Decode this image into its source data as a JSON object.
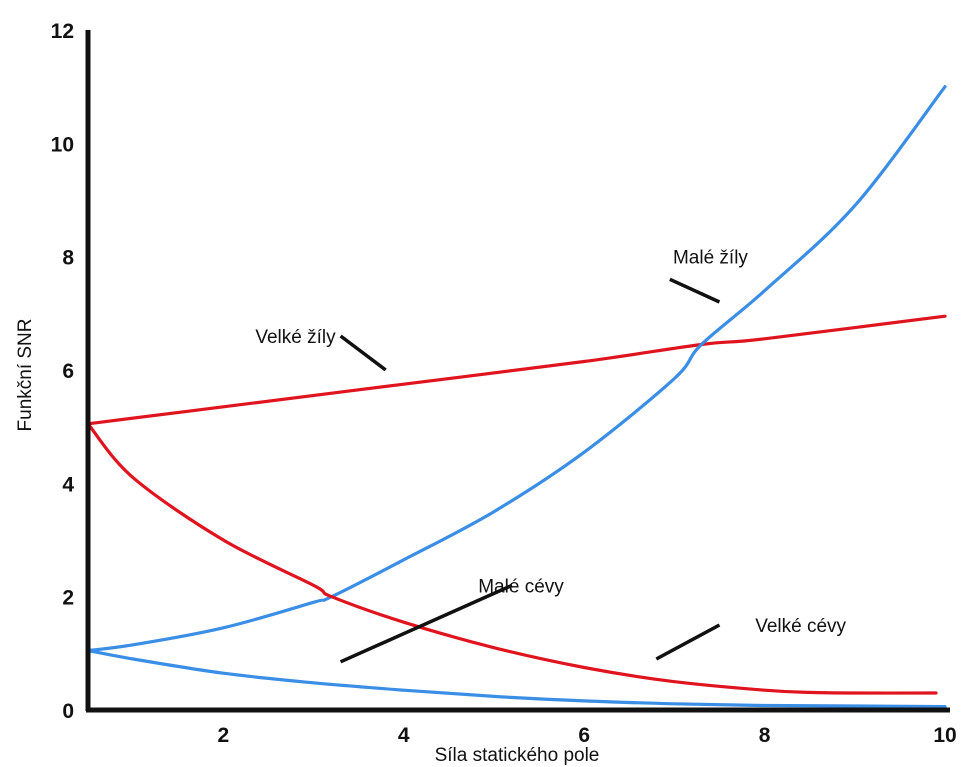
{
  "chart_data": {
    "type": "line",
    "xlabel": "Síla statického pole",
    "ylabel": "Funkční SNR",
    "xlim": [
      0.5,
      10
    ],
    "ylim": [
      0,
      12
    ],
    "x_ticks": [
      "2",
      "4",
      "6",
      "8",
      "10"
    ],
    "y_ticks": [
      "0",
      "2",
      "4",
      "6",
      "8",
      "10",
      "12"
    ],
    "grid": false,
    "series": [
      {
        "name": "Velké žíly",
        "color": "#e0141e",
        "x": [
          0.5,
          2,
          4,
          6,
          7.3,
          8,
          10
        ],
        "y": [
          5.05,
          5.35,
          5.75,
          6.15,
          6.45,
          6.55,
          6.95
        ]
      },
      {
        "name": "Malé žíly",
        "color": "#3a8ee6",
        "x": [
          0.5,
          1,
          2,
          3,
          3.2,
          4,
          5,
          6,
          7,
          7.3,
          8,
          9,
          10
        ],
        "y": [
          1.05,
          1.15,
          1.45,
          1.9,
          2.0,
          2.65,
          3.5,
          4.55,
          5.85,
          6.45,
          7.4,
          8.9,
          11.0
        ]
      },
      {
        "name": "Velké cévy",
        "color": "#e0141e",
        "x": [
          0.5,
          1,
          2,
          3,
          3.2,
          4,
          5,
          6,
          7,
          8,
          8.5,
          9,
          9.9
        ],
        "y": [
          5.05,
          4.1,
          3.0,
          2.2,
          2.0,
          1.55,
          1.1,
          0.75,
          0.5,
          0.35,
          0.31,
          0.3,
          0.3
        ]
      },
      {
        "name": "Malé cévy",
        "color": "#3a8ee6",
        "x": [
          0.5,
          1,
          2,
          3,
          4,
          5,
          6,
          7,
          8,
          9,
          10
        ],
        "y": [
          1.05,
          0.9,
          0.65,
          0.48,
          0.35,
          0.24,
          0.16,
          0.11,
          0.08,
          0.07,
          0.06
        ]
      }
    ],
    "annotations": [
      {
        "label": "Malé žíly",
        "text_at": [
          7.4,
          8.0
        ],
        "pointer_from": [
          6.95,
          7.6
        ],
        "pointer_to": [
          7.5,
          7.2
        ]
      },
      {
        "label": "Velké žíly",
        "text_at": [
          2.8,
          6.6
        ],
        "pointer_from": [
          3.3,
          6.6
        ],
        "pointer_to": [
          3.8,
          6.0
        ]
      },
      {
        "label": "Malé cévy",
        "text_at": [
          5.3,
          2.2
        ],
        "pointer_from": [
          5.2,
          2.2
        ],
        "pointer_to": [
          3.3,
          0.85
        ]
      },
      {
        "label": "Velké cévy",
        "text_at": [
          8.4,
          1.5
        ],
        "pointer_from": [
          7.5,
          1.5
        ],
        "pointer_to": [
          6.8,
          0.9
        ]
      }
    ]
  }
}
